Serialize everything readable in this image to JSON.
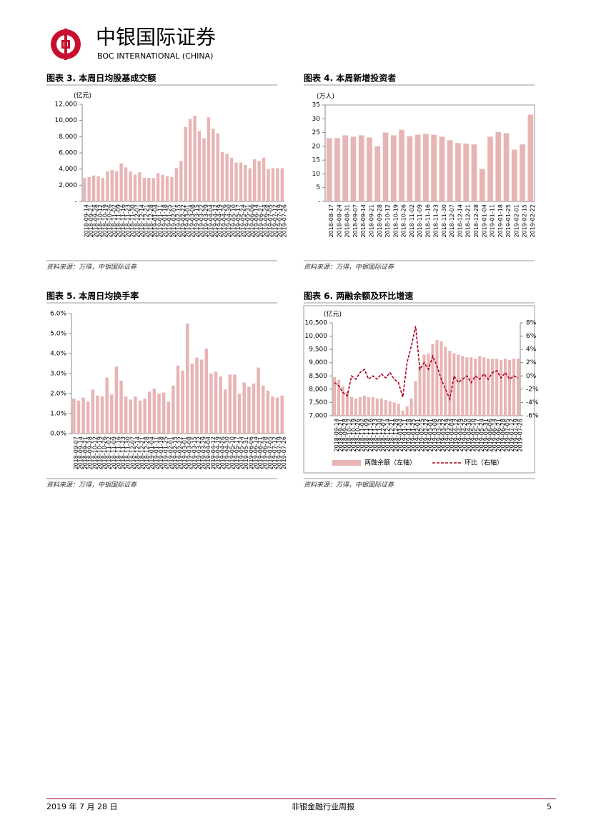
{
  "header": {
    "company": "中银国际证券",
    "company_en": "BOC INTERNATIONAL (CHINA)"
  },
  "chart_data": [
    {
      "type": "bar",
      "title": "图表 3. 本周日均股基成交额",
      "y_unit": "(亿元)",
      "source": "资料来源：万得，中银国际证券",
      "color": "#e8b4b4",
      "categories": [
        "2018-09-14",
        "2018-09-21",
        "2018-09-28",
        "2018-10-12",
        "2018-10-19",
        "2018-10-26",
        "2018-11-02",
        "2018-11-09",
        "2018-11-16",
        "2018-11-23",
        "2018-11-30",
        "2018-12-07",
        "2018-12-14",
        "2018-12-21",
        "2018-12-28",
        "2019-01-04",
        "2019-01-11",
        "2019-01-18",
        "2019-01-25",
        "2019-02-01",
        "2019-02-15",
        "2019-02-22",
        "2019-03-01",
        "2019-03-08",
        "2019-03-15",
        "2019-03-22",
        "2019-03-29",
        "2019-04-04",
        "2019-04-12",
        "2019-04-19",
        "2019-04-26",
        "2019-04-30",
        "2019-05-10",
        "2019-05-17",
        "2019-05-24",
        "2019-05-31",
        "2019-06-06",
        "2019-06-14",
        "2019-06-21",
        "2019-06-28",
        "2019-07-05",
        "2019-07-12",
        "2019-07-19",
        "2019-07-26"
      ],
      "values": [
        2900,
        3000,
        3200,
        3100,
        2900,
        3700,
        3900,
        3700,
        4700,
        4200,
        3700,
        3300,
        3600,
        2900,
        2900,
        2900,
        3500,
        3300,
        3100,
        3000,
        4100,
        5000,
        9200,
        10200,
        10600,
        8700,
        7800,
        10400,
        9000,
        8400,
        6100,
        5900,
        5400,
        4800,
        4800,
        4500,
        4100,
        5200,
        5000,
        5400,
        4000,
        4100,
        4100,
        4100
      ],
      "ylim": [
        0,
        12000
      ],
      "yticks": [
        {
          "value": 0,
          "label": "-"
        },
        {
          "value": 2000,
          "label": "2,000"
        },
        {
          "value": 4000,
          "label": "4,000"
        },
        {
          "value": 6000,
          "label": "6,000"
        },
        {
          "value": 8000,
          "label": "8,000"
        },
        {
          "value": 10000,
          "label": "10,000"
        },
        {
          "value": 12000,
          "label": "12,000"
        }
      ],
      "grid": false
    },
    {
      "type": "bar",
      "title": "图表 4. 本周新增投资者",
      "y_unit": "(万人)",
      "source": "资料来源：万得，中银国际证券",
      "color": "#e8b4b4",
      "categories": [
        "2018-08-17",
        "2018-08-24",
        "2018-08-31",
        "2018-09-07",
        "2018-09-14",
        "2018-09-21",
        "2018-09-28",
        "2018-10-12",
        "2018-10-19",
        "2018-10-26",
        "2018-11-02",
        "2018-11-09",
        "2018-11-16",
        "2018-11-23",
        "2018-11-30",
        "2018-12-07",
        "2018-12-14",
        "2018-12-21",
        "2018-12-28",
        "2019-01-04",
        "2019-01-11",
        "2019-01-18",
        "2019-01-25",
        "2019-02-01",
        "2019-02-15",
        "2019-02-22"
      ],
      "values": [
        23,
        23,
        24,
        23.5,
        24,
        23.2,
        20,
        25,
        24,
        26,
        23.7,
        24.2,
        24.5,
        24.2,
        23.5,
        22.2,
        21.2,
        21,
        20.7,
        11.8,
        23.5,
        25.2,
        24.8,
        18.8,
        20.7,
        31.5
      ],
      "ylim": [
        0,
        35
      ],
      "yticks": [
        {
          "value": 0,
          "label": "-"
        },
        5,
        10,
        15,
        20,
        25,
        30,
        35
      ],
      "grid": false
    },
    {
      "type": "bar",
      "title": "图表 5. 本周日均换手率",
      "source": "资料来源：万得，中银国际证券",
      "color": "#e8b4b4",
      "categories": [
        "2018-09-07",
        "2018-09-14",
        "2018-09-21",
        "2018-09-28",
        "2018-10-12",
        "2018-10-19",
        "2018-10-26",
        "2018-11-02",
        "2018-11-09",
        "2018-11-16",
        "2018-11-23",
        "2018-11-30",
        "2018-12-07",
        "2018-12-14",
        "2018-12-21",
        "2018-12-28",
        "2019-01-04",
        "2019-01-11",
        "2019-01-18",
        "2019-01-25",
        "2019-02-01",
        "2019-02-15",
        "2019-02-22",
        "2019-03-01",
        "2019-03-08",
        "2019-03-15",
        "2019-03-22",
        "2019-03-29",
        "2019-04-04",
        "2019-04-12",
        "2019-04-19",
        "2019-04-26",
        "2019-04-30",
        "2019-05-10",
        "2019-05-17",
        "2019-05-24",
        "2019-05-31",
        "2019-06-06",
        "2019-06-14",
        "2019-06-21",
        "2019-06-28",
        "2019-07-05",
        "2019-07-12",
        "2019-07-19",
        "2019-07-26"
      ],
      "values": [
        1.75,
        1.65,
        1.8,
        1.6,
        2.2,
        1.9,
        1.85,
        2.8,
        1.95,
        3.35,
        2.65,
        1.85,
        1.7,
        1.85,
        1.65,
        1.75,
        2.1,
        2.25,
        2.0,
        2.05,
        1.6,
        2.4,
        3.4,
        3.15,
        5.5,
        3.5,
        3.8,
        3.7,
        4.25,
        3.0,
        3.1,
        2.85,
        2.2,
        2.95,
        2.95,
        2.0,
        2.55,
        2.35,
        2.5,
        3.3,
        2.4,
        2.15,
        1.85,
        1.8,
        1.9
      ],
      "ylim": [
        0,
        6
      ],
      "yticks": [
        {
          "value": 0,
          "label": "0.0%"
        },
        {
          "value": 1,
          "label": "1.0%"
        },
        {
          "value": 2,
          "label": "2.0%"
        },
        {
          "value": 3,
          "label": "3.0%"
        },
        {
          "value": 4,
          "label": "4.0%"
        },
        {
          "value": 5,
          "label": "5.0%"
        },
        {
          "value": 6,
          "label": "6.0%"
        }
      ],
      "grid": false
    },
    {
      "type": "combo",
      "title": "图表 6. 两融余额及环比增速",
      "y_unit": "(亿元)",
      "source": "资料来源：万得，中银国际证券",
      "categories": [
        "2018-09-14",
        "2018-09-21",
        "2018-09-28",
        "2018-10-12",
        "2018-10-19",
        "2018-10-26",
        "2018-11-02",
        "2018-11-09",
        "2018-11-16",
        "2018-11-23",
        "2018-11-30",
        "2018-12-07",
        "2018-12-14",
        "2018-12-21",
        "2018-12-28",
        "2019-01-04",
        "2019-01-11",
        "2019-01-18",
        "2019-01-25",
        "2019-02-01",
        "2019-02-15",
        "2019-02-22",
        "2019-03-01",
        "2019-03-08",
        "2019-03-15",
        "2019-03-22",
        "2019-03-29",
        "2019-04-04",
        "2019-04-12",
        "2019-04-19",
        "2019-04-26",
        "2019-04-30",
        "2019-05-10",
        "2019-05-17",
        "2019-05-24",
        "2019-05-31",
        "2019-06-06",
        "2019-06-14",
        "2019-06-21",
        "2019-06-28",
        "2019-07-05",
        "2019-07-12",
        "2019-07-19",
        "2019-07-26"
      ],
      "series": [
        {
          "name": "两融余额（左轴）",
          "type": "bar",
          "color": "#e8b4b4",
          "values": [
            8450,
            8350,
            8100,
            7900,
            7700,
            7650,
            7700,
            7750,
            7700,
            7700,
            7650,
            7650,
            7600,
            7550,
            7500,
            7450,
            7200,
            7350,
            7650,
            8300,
            8850,
            9300,
            9350,
            9700,
            9850,
            9800,
            9600,
            9450,
            9350,
            9300,
            9250,
            9200,
            9200,
            9150,
            9250,
            9200,
            9150,
            9150,
            9150,
            9100,
            9150,
            9100,
            9150,
            9150
          ]
        },
        {
          "name": "环比（右轴）",
          "type": "line",
          "axis": "y2",
          "color": "#b0001e",
          "values": [
            -1,
            -1.5,
            -2.5,
            -3,
            0,
            -0.5,
            0.5,
            1,
            -0.5,
            0,
            -0.5,
            0.3,
            -0.3,
            0.5,
            -0.5,
            -1,
            -3.2,
            2,
            4.5,
            7.5,
            1,
            2,
            1,
            3,
            1.5,
            -0.5,
            -2,
            -3.5,
            0,
            -1,
            -0.5,
            0,
            -1,
            0,
            -0.5,
            0.3,
            -0.5,
            0.5,
            0.8,
            -0.3,
            0.5,
            -0.5,
            0,
            -0.3
          ]
        }
      ],
      "ylim": [
        7000,
        10500
      ],
      "yticks": [
        {
          "value": 7000,
          "label": "7,000"
        },
        {
          "value": 7500,
          "label": "7,500"
        },
        {
          "value": 8000,
          "label": "8,000"
        },
        {
          "value": 8500,
          "label": "8,500"
        },
        {
          "value": 9000,
          "label": "9,000"
        },
        {
          "value": 9500,
          "label": "9,500"
        },
        {
          "value": 10000,
          "label": "10,000"
        },
        {
          "value": 10500,
          "label": "10,500"
        }
      ],
      "y2lim": [
        -6,
        8
      ],
      "y2ticks": [
        {
          "value": -6,
          "label": "-6%"
        },
        {
          "value": -4,
          "label": "-4%"
        },
        {
          "value": -2,
          "label": "-2%"
        },
        {
          "value": 0,
          "label": "0%"
        },
        {
          "value": 2,
          "label": "2%"
        },
        {
          "value": 4,
          "label": "4%"
        },
        {
          "value": 6,
          "label": "6%"
        },
        {
          "value": 8,
          "label": "8%"
        }
      ],
      "grid": false,
      "legend": "bottom"
    }
  ],
  "footer": {
    "date": "2019 年 7 月 28 日",
    "report": "非银金融行业周报",
    "page": "5"
  }
}
